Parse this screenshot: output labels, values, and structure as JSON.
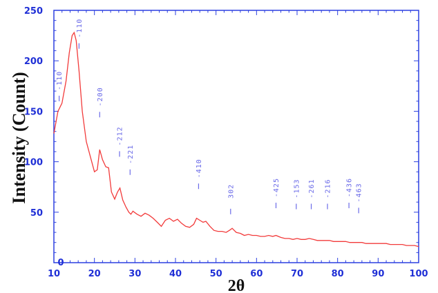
{
  "chart_data": {
    "type": "line",
    "xlabel": "2θ",
    "ylabel": "Intensity (Count)",
    "xlim": [
      10,
      100
    ],
    "ylim": [
      0,
      250
    ],
    "x_ticks": [
      "10",
      "20",
      "30",
      "40",
      "50",
      "60",
      "70",
      "80",
      "90",
      "100"
    ],
    "y_ticks": [
      "0",
      "50",
      "100",
      "150",
      "200",
      "250"
    ],
    "colors": {
      "line": "#f23a3a",
      "axis": "#2b3fe0",
      "tick_text": "#1f2fd6",
      "peak_text": "#6a6ae8"
    },
    "series": [
      {
        "x": [
          10,
          11,
          12,
          13,
          13.8,
          14.5,
          15,
          15.5,
          16.2,
          17,
          18,
          19,
          20,
          20.7,
          21.3,
          22,
          22.8,
          23.5,
          24.2,
          25,
          25.7,
          26.3,
          27,
          27.8,
          28.5,
          29,
          29.5,
          30.5,
          31.5,
          32.5,
          33.5,
          34.5,
          35.5,
          36.5,
          37.5,
          38.5,
          39.5,
          40.5,
          41.5,
          42.5,
          43.5,
          44.5,
          45.2,
          46,
          46.8,
          47.5,
          48.5,
          49.5,
          50.5,
          51.5,
          52.5,
          53.3,
          54,
          55,
          56,
          57,
          58,
          59,
          60,
          61,
          62,
          63,
          64,
          64.8,
          66,
          67,
          68,
          69,
          70,
          71,
          72,
          73,
          74,
          75,
          76,
          77,
          78,
          79,
          80,
          81,
          82,
          83,
          84,
          85,
          86,
          87,
          88,
          89,
          90,
          91,
          92,
          93,
          94,
          95,
          96,
          97,
          98,
          99,
          100
        ],
        "y": [
          128,
          150,
          158,
          180,
          208,
          225,
          228,
          220,
          190,
          150,
          120,
          105,
          90,
          92,
          112,
          102,
          95,
          94,
          70,
          63,
          70,
          74,
          62,
          55,
          50,
          48,
          51,
          48,
          46,
          49,
          47,
          44,
          40,
          36,
          42,
          44,
          41,
          43,
          39,
          36,
          35,
          38,
          44,
          42,
          40,
          41,
          36,
          32,
          31,
          31,
          30,
          32,
          34,
          30,
          29,
          27,
          28,
          27,
          27,
          26,
          26,
          27,
          26,
          27,
          25,
          24,
          24,
          23,
          24,
          23,
          23,
          24,
          23,
          22,
          22,
          22,
          22,
          21,
          21,
          21,
          21,
          20,
          20,
          20,
          20,
          19,
          19,
          19,
          19,
          19,
          19,
          18,
          18,
          18,
          18,
          17,
          17,
          17,
          16
        ]
      }
    ],
    "peak_labels": [
      {
        "text": "-110",
        "x": 11.3,
        "y_top": 190
      },
      {
        "text": "-110",
        "x": 16.2,
        "y_top": 242
      },
      {
        "text": "-200",
        "x": 21.3,
        "y_top": 174
      },
      {
        "text": "-212",
        "x": 26.2,
        "y_top": 135
      },
      {
        "text": "-221",
        "x": 28.8,
        "y_top": 117
      },
      {
        "text": "-410",
        "x": 45.7,
        "y_top": 103
      },
      {
        "text": "302",
        "x": 53.6,
        "y_top": 78
      },
      {
        "text": "-425",
        "x": 64.8,
        "y_top": 84
      },
      {
        "text": "-153",
        "x": 69.8,
        "y_top": 83
      },
      {
        "text": "-261",
        "x": 73.5,
        "y_top": 83
      },
      {
        "text": "-216",
        "x": 77.5,
        "y_top": 83
      },
      {
        "text": "-436",
        "x": 82.8,
        "y_top": 84
      },
      {
        "text": "-463",
        "x": 85.2,
        "y_top": 79
      }
    ]
  }
}
